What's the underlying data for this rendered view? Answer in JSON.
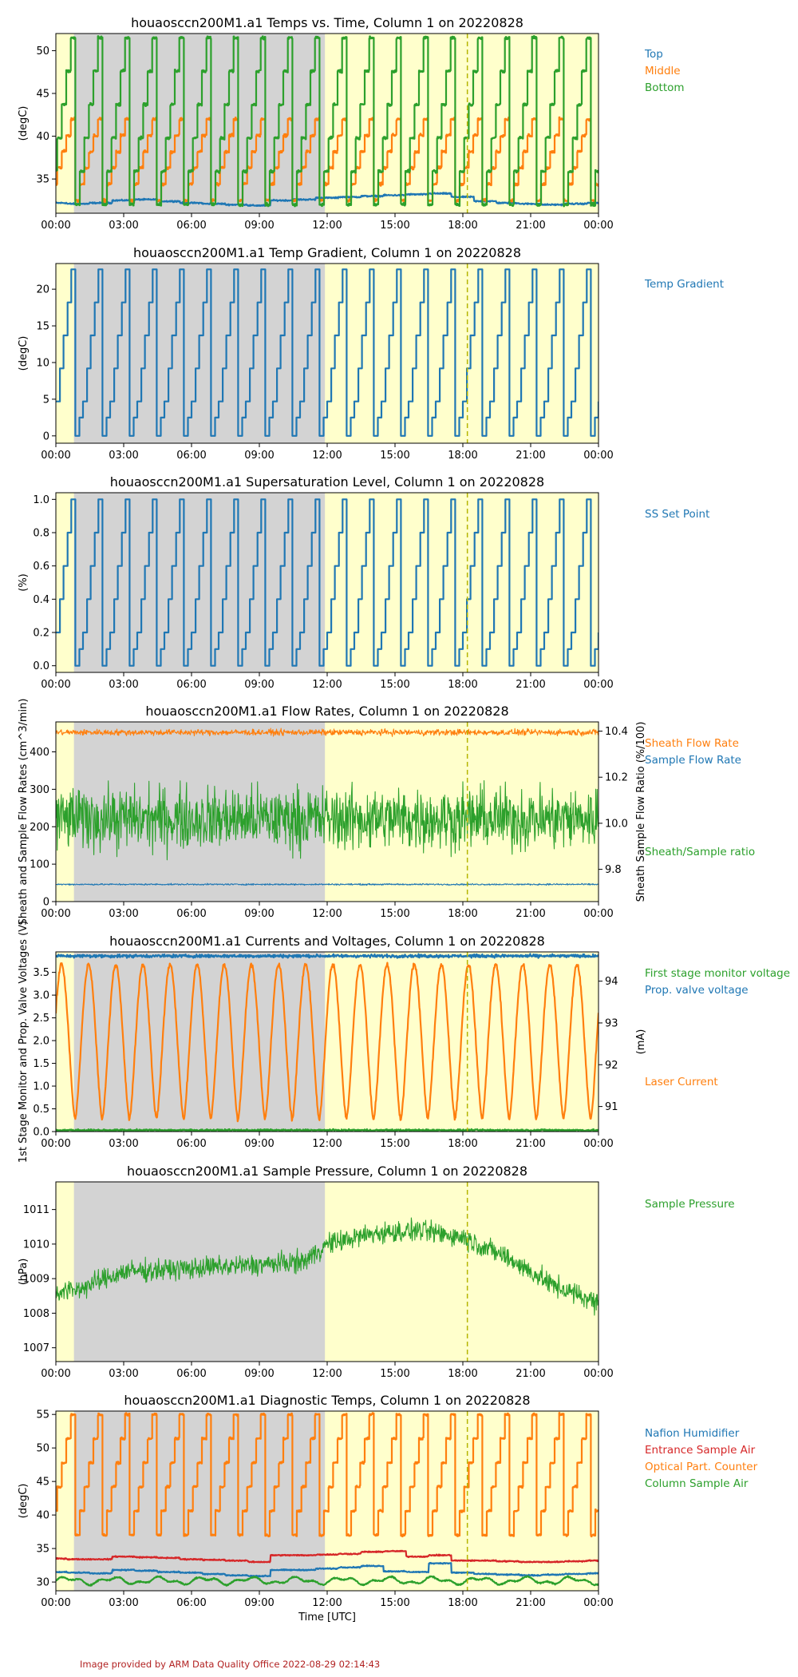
{
  "figure": {
    "credit": "Image provided by ARM Data Quality Office 2022-08-29 02:14:43",
    "xlabel": "Time [UTC]",
    "x_ticks": [
      "00:00",
      "03:00",
      "06:00",
      "09:00",
      "12:00",
      "15:00",
      "18:00",
      "21:00",
      "00:00"
    ],
    "colors": {
      "blue": "#1f77b4",
      "orange": "#ff7f0e",
      "green": "#2ca02c",
      "red": "#d62728",
      "night": "#d3d3d3",
      "day": "#ffffcc",
      "marker": "#b5b500"
    }
  },
  "chart_data": [
    {
      "type": "line",
      "title": "houaosccn200M1.a1 Temps vs. Time, Column 1 on 20220828",
      "ylabel": "(degC)",
      "ylim": [
        31,
        52
      ],
      "yticks": [
        35,
        40,
        45,
        50
      ],
      "x_range_hours": [
        0,
        24
      ],
      "shade_night_hours": [
        0.8,
        11.9
      ],
      "marker_hour": 18.2,
      "series": [
        {
          "name": "Top",
          "color": "#1f77b4",
          "kind": "step",
          "values": [
            32.2,
            32.1,
            32.2,
            32.5,
            32.6,
            32.4,
            32.2,
            32.1,
            32.0,
            31.9,
            32.5,
            32.6,
            32.8,
            32.9,
            33.0,
            33.1,
            33.2,
            33.3,
            32.9,
            32.4,
            32.2,
            32.1,
            32.0,
            32.1,
            32.2
          ]
        },
        {
          "name": "Middle",
          "color": "#ff7f0e",
          "kind": "cycle",
          "min": 32.5,
          "max": 42.0,
          "period_h": 1.2
        },
        {
          "name": "Bottom",
          "color": "#2ca02c",
          "kind": "cycle",
          "min": 32.0,
          "max": 51.5,
          "period_h": 1.2
        }
      ]
    },
    {
      "type": "line",
      "title": "houaosccn200M1.a1 Temp Gradient, Column 1 on 20220828",
      "ylabel": "(degC)",
      "ylim": [
        -1,
        23.5
      ],
      "yticks": [
        0,
        5,
        10,
        15,
        20
      ],
      "x_range_hours": [
        0,
        24
      ],
      "shade_night_hours": [
        0.8,
        11.9
      ],
      "marker_hour": 18.2,
      "series": [
        {
          "name": "Temp Gradient",
          "color": "#1f77b4",
          "kind": "stair",
          "levels": [
            0,
            2.5,
            4.7,
            9.2,
            13.7,
            18.2,
            22.7
          ],
          "period_h": 1.2
        }
      ]
    },
    {
      "type": "line",
      "title": "houaosccn200M1.a1 Supersaturation Level, Column 1 on 20220828",
      "ylabel": "(%)",
      "ylim": [
        -0.04,
        1.04
      ],
      "yticks": [
        0.0,
        0.2,
        0.4,
        0.6,
        0.8,
        1.0
      ],
      "x_range_hours": [
        0,
        24
      ],
      "shade_night_hours": [
        0.8,
        11.9
      ],
      "marker_hour": 18.2,
      "series": [
        {
          "name": "SS Set Point",
          "color": "#1f77b4",
          "kind": "stair",
          "levels": [
            0,
            0.1,
            0.2,
            0.4,
            0.6,
            0.8,
            1.0
          ],
          "period_h": 1.2
        }
      ]
    },
    {
      "type": "line",
      "title": "houaosccn200M1.a1 Flow Rates, Column 1 on 20220828",
      "ylabel": "Sheath and Sample Flow Rates (cm^3/min)",
      "ylabel_right": "Sheath Sample Flow Ratio (%/100)",
      "ylim": [
        0,
        480
      ],
      "yticks": [
        0,
        100,
        200,
        300,
        400
      ],
      "ylim_right": [
        9.66,
        10.44
      ],
      "yticks_right": [
        9.8,
        10.0,
        10.2,
        10.4
      ],
      "x_range_hours": [
        0,
        24
      ],
      "shade_night_hours": [
        0.8,
        11.9
      ],
      "marker_hour": 18.2,
      "series": [
        {
          "name": "Sheath Flow Rate",
          "color": "#ff7f0e",
          "kind": "noise",
          "center": 452,
          "amp": 12
        },
        {
          "name": "Sample Flow Rate",
          "color": "#1f77b4",
          "kind": "noise",
          "center": 46,
          "amp": 3
        },
        {
          "name": "Sheath/Sample ratio",
          "color": "#2ca02c",
          "kind": "noise",
          "axis": "right",
          "center": 10.02,
          "amp": 0.2
        }
      ]
    },
    {
      "type": "line",
      "title": "houaosccn200M1.a1 Currents and Voltages, Column 1 on 20220828",
      "ylabel": "1st Stage Monitor and Prop. Valve Voltages (V)",
      "ylabel_right": "(mA)",
      "ylim": [
        0,
        3.95
      ],
      "yticks": [
        0.0,
        0.5,
        1.0,
        1.5,
        2.0,
        2.5,
        3.0,
        3.5
      ],
      "ylim_right": [
        90.4,
        94.7
      ],
      "yticks_right": [
        91,
        92,
        93,
        94
      ],
      "x_range_hours": [
        0,
        24
      ],
      "shade_night_hours": [
        0.8,
        11.9
      ],
      "marker_hour": 18.2,
      "series": [
        {
          "name": "First stage monitor voltage",
          "color": "#2ca02c",
          "kind": "noise",
          "center": 0.03,
          "amp": 0.03
        },
        {
          "name": "Prop. valve voltage",
          "color": "#1f77b4",
          "kind": "noise",
          "center": 3.86,
          "amp": 0.05
        },
        {
          "name": "Laser Current",
          "color": "#ff7f0e",
          "kind": "wave",
          "axis": "right",
          "min": 90.7,
          "max": 94.4,
          "period_h": 1.2
        }
      ]
    },
    {
      "type": "line",
      "title": "houaosccn200M1.a1 Sample Pressure, Column 1 on 20220828",
      "ylabel": "(hPa)",
      "ylim": [
        1006.6,
        1011.8
      ],
      "yticks": [
        1007,
        1008,
        1009,
        1010,
        1011
      ],
      "x_range_hours": [
        0,
        24
      ],
      "shade_night_hours": [
        0.8,
        11.9
      ],
      "marker_hour": 18.2,
      "series": [
        {
          "name": "Sample Pressure",
          "color": "#2ca02c",
          "kind": "trend",
          "x": [
            0,
            1,
            3,
            6,
            9,
            11,
            12,
            14,
            16,
            18,
            20,
            22,
            24
          ],
          "values": [
            1008.6,
            1008.7,
            1009.2,
            1009.3,
            1009.4,
            1009.5,
            1010.0,
            1010.3,
            1010.4,
            1010.2,
            1009.6,
            1008.8,
            1008.3
          ],
          "amp": 0.45
        }
      ]
    },
    {
      "type": "line",
      "title": "houaosccn200M1.a1 Diagnostic Temps, Column 1 on 20220828",
      "ylabel": "(degC)",
      "ylim": [
        28.7,
        55.5
      ],
      "yticks": [
        30,
        35,
        40,
        45,
        50,
        55
      ],
      "x_range_hours": [
        0,
        24
      ],
      "shade_night_hours": [
        0.8,
        11.9
      ],
      "marker_hour": 18.2,
      "series": [
        {
          "name": "Nafion Humidifier",
          "color": "#1f77b4",
          "kind": "step",
          "values": [
            31.5,
            31.4,
            31.3,
            31.8,
            31.7,
            31.5,
            31.4,
            31.2,
            31.0,
            30.9,
            31.8,
            31.8,
            32.0,
            32.2,
            32.4,
            31.6,
            31.5,
            32.8,
            31.4,
            31.2,
            31.1,
            31.0,
            31.1,
            31.2,
            31.3
          ]
        },
        {
          "name": "Entrance Sample Air",
          "color": "#d62728",
          "kind": "step",
          "values": [
            33.5,
            33.4,
            33.4,
            33.8,
            33.7,
            33.6,
            33.4,
            33.3,
            33.2,
            33.0,
            34.0,
            34.0,
            34.1,
            34.2,
            34.5,
            34.6,
            33.8,
            34.0,
            33.2,
            33.2,
            33.1,
            33.0,
            33.0,
            33.1,
            33.2
          ]
        },
        {
          "name": "Optical Part. Counter",
          "color": "#ff7f0e",
          "kind": "cycle",
          "min": 37.0,
          "max": 55.0,
          "period_h": 1.2
        },
        {
          "name": "Column Sample Air",
          "color": "#2ca02c",
          "kind": "wavy",
          "center": 30.2,
          "amp": 0.8
        }
      ]
    }
  ]
}
